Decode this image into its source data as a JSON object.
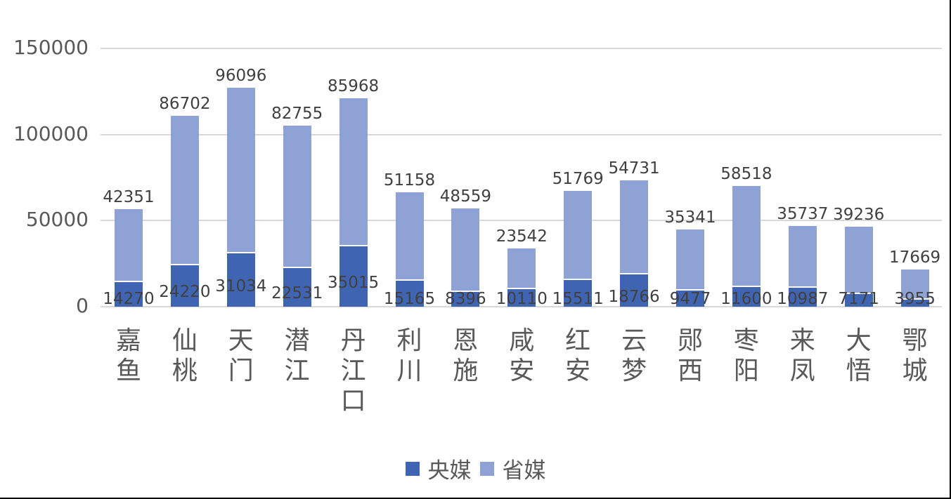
{
  "chart_data": {
    "type": "bar",
    "stacked": true,
    "title": "",
    "xlabel": "",
    "ylabel": "",
    "ylim": [
      0,
      150000
    ],
    "yticks": [
      0,
      50000,
      100000,
      150000
    ],
    "ytick_labels": [
      "0",
      "50000",
      "100000",
      "150000"
    ],
    "grid": true,
    "legend_position": "bottom",
    "categories": [
      "嘉鱼",
      "仙桃",
      "天门",
      "潜江",
      "丹江口",
      "利川",
      "恩施",
      "咸安",
      "红安",
      "云梦",
      "郧西",
      "枣阳",
      "来凤",
      "大悟",
      "鄂城"
    ],
    "series": [
      {
        "name": "央媒",
        "color": "#3f64b2",
        "values": [
          14270,
          24220,
          31034,
          22531,
          35015,
          15165,
          8396,
          10110,
          15511,
          18766,
          9477,
          11600,
          10987,
          7171,
          3955
        ]
      },
      {
        "name": "省媒",
        "color": "#8fa2d6",
        "values": [
          42351,
          86702,
          96096,
          82755,
          85968,
          51158,
          48559,
          23542,
          51769,
          54731,
          35341,
          58518,
          35737,
          39236,
          17669
        ]
      }
    ]
  },
  "legend": {
    "items": [
      {
        "label": "央媒",
        "color": "#3f64b2"
      },
      {
        "label": "省媒",
        "color": "#8fa2d6"
      }
    ]
  }
}
